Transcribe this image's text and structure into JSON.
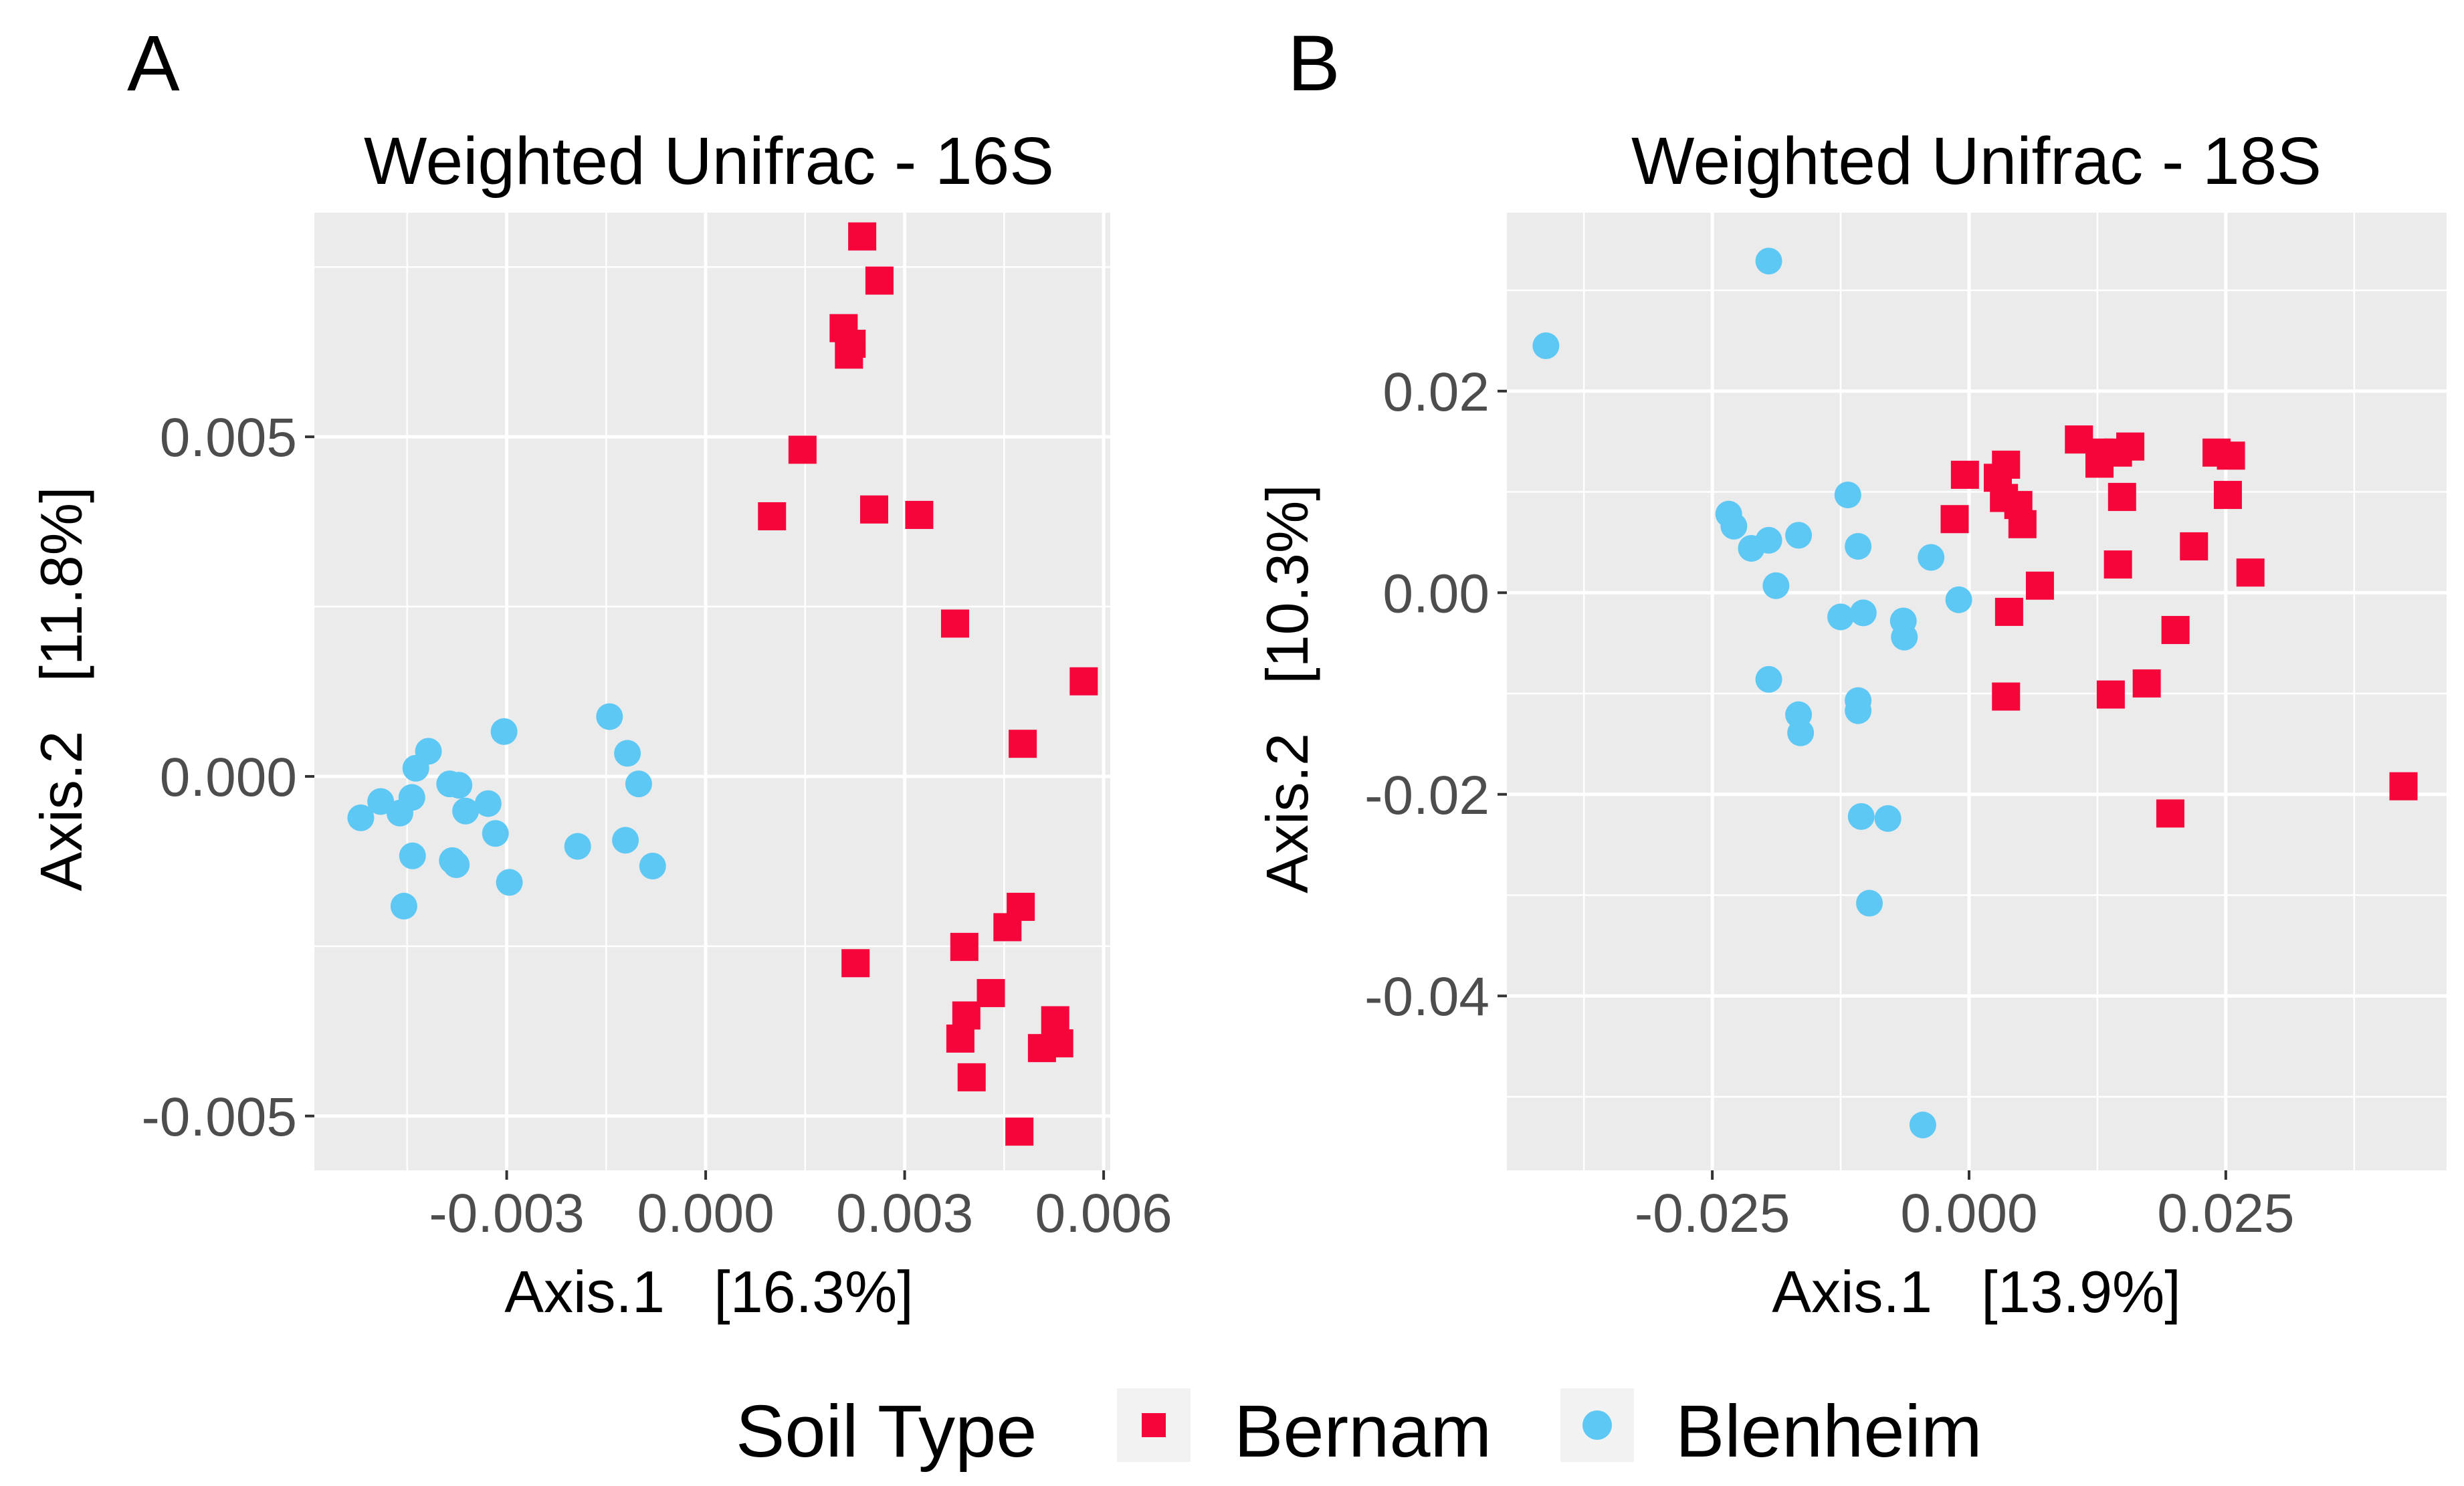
{
  "legend": {
    "title": "Soil Type",
    "items": [
      {
        "label": "Bernam",
        "shape": "square",
        "color": "#f5053a"
      },
      {
        "label": "Blenheim",
        "shape": "circle",
        "color": "#5ec8f5"
      }
    ]
  },
  "colors": {
    "panel_bg": "#ebebeb",
    "grid": "#ffffff",
    "tick_text": "#4d4d4d",
    "Bernam": "#f5053a",
    "Blenheim": "#5ec8f5"
  },
  "chart_data": [
    {
      "type": "scatter",
      "panel_label": "A",
      "title": "Weighted Unifrac - 16S",
      "xlabel": "Axis.1   [16.3%]",
      "ylabel": "Axis.2   [11.8%]",
      "xlim": [
        -0.0059,
        0.0061
      ],
      "ylim": [
        -0.0058,
        0.0083
      ],
      "xticks": [
        -0.003,
        0.0,
        0.003,
        0.006
      ],
      "xtick_labels": [
        "-0.003",
        "0.000",
        "0.003",
        "0.006"
      ],
      "yticks": [
        -0.005,
        0.0,
        0.005
      ],
      "ytick_labels": [
        "-0.005",
        "0.000",
        "0.005"
      ],
      "series": [
        {
          "name": "Bernam",
          "points": [
            [
              0.00236,
              0.00795
            ],
            [
              0.00262,
              0.0073
            ],
            [
              0.00208,
              0.0066
            ],
            [
              0.0022,
              0.00637
            ],
            [
              0.00216,
              0.00621
            ],
            [
              0.00146,
              0.00481
            ],
            [
              0.001,
              0.00383
            ],
            [
              0.00254,
              0.00393
            ],
            [
              0.00322,
              0.00385
            ],
            [
              0.00376,
              0.00225
            ],
            [
              0.0057,
              0.0014
            ],
            [
              0.00478,
              0.00048
            ],
            [
              0.00226,
              -0.00275
            ],
            [
              0.00475,
              -0.00192
            ],
            [
              0.00455,
              -0.00222
            ],
            [
              0.0039,
              -0.00251
            ],
            [
              0.0043,
              -0.00319
            ],
            [
              0.00393,
              -0.00352
            ],
            [
              0.00384,
              -0.00386
            ],
            [
              0.00527,
              -0.00359
            ],
            [
              0.00507,
              -0.004
            ],
            [
              0.00533,
              -0.00393
            ],
            [
              0.00401,
              -0.00443
            ],
            [
              0.00473,
              -0.00523
            ]
          ]
        },
        {
          "name": "Blenheim",
          "points": [
            [
              -0.0052,
              -0.00061
            ],
            [
              -0.0049,
              -0.00037
            ],
            [
              -0.00461,
              -0.00054
            ],
            [
              -0.00437,
              0.00012
            ],
            [
              -0.00418,
              0.00037
            ],
            [
              -0.00386,
              -0.00011
            ],
            [
              -0.00372,
              -0.00013
            ],
            [
              -0.00362,
              -0.00051
            ],
            [
              -0.00443,
              -0.00031
            ],
            [
              -0.00442,
              -0.00117
            ],
            [
              -0.00382,
              -0.00124
            ],
            [
              -0.00376,
              -0.0013
            ],
            [
              -0.00328,
              -0.0004
            ],
            [
              -0.00317,
              -0.00084
            ],
            [
              -0.00296,
              -0.00156
            ],
            [
              -0.00455,
              -0.00191
            ],
            [
              -0.00304,
              0.00066
            ],
            [
              -0.00193,
              -0.00103
            ],
            [
              -0.00145,
              0.00088
            ],
            [
              -0.00118,
              0.00034
            ],
            [
              -0.00101,
              -0.00011
            ],
            [
              -0.00121,
              -0.00094
            ],
            [
              -0.0008,
              -0.00132
            ]
          ]
        }
      ]
    },
    {
      "type": "scatter",
      "panel_label": "B",
      "title": "Weighted Unifrac - 18S",
      "xlabel": "Axis.1   [13.9%]",
      "ylabel": "Axis.2   [10.3%]",
      "xlim": [
        -0.045,
        0.0465
      ],
      "ylim": [
        -0.0573,
        0.0377
      ],
      "xticks": [
        -0.025,
        0.0,
        0.025
      ],
      "xtick_labels": [
        "-0.025",
        "0.000",
        "0.025"
      ],
      "yticks": [
        -0.04,
        -0.02,
        0.0,
        0.02
      ],
      "ytick_labels": [
        "-0.04",
        "-0.02",
        "0.00",
        "0.02"
      ],
      "series": [
        {
          "name": "Bernam",
          "points": [
            [
              0.0107,
              0.0152
            ],
            [
              0.0127,
              0.0139
            ],
            [
              0.0127,
              0.0128
            ],
            [
              0.0145,
              0.0139
            ],
            [
              0.0157,
              0.0145
            ],
            [
              0.0241,
              0.0139
            ],
            [
              0.0255,
              0.0136
            ],
            [
              0.0036,
              0.0127
            ],
            [
              -0.0004,
              0.0117
            ],
            [
              0.0028,
              0.0114
            ],
            [
              0.0034,
              0.0094
            ],
            [
              0.0048,
              0.0087
            ],
            [
              0.0052,
              0.0068
            ],
            [
              -0.0014,
              0.0073
            ],
            [
              0.0149,
              0.0095
            ],
            [
              0.0252,
              0.0097
            ],
            [
              0.0219,
              0.0046
            ],
            [
              0.0145,
              0.0028
            ],
            [
              0.0274,
              0.002
            ],
            [
              0.0069,
              0.0007
            ],
            [
              0.0039,
              -0.0019
            ],
            [
              0.0201,
              -0.0037
            ],
            [
              0.0036,
              -0.0103
            ],
            [
              0.0138,
              -0.0101
            ],
            [
              0.0173,
              -0.009
            ],
            [
              0.0196,
              -0.0219
            ],
            [
              0.0423,
              -0.0192
            ]
          ]
        },
        {
          "name": "Blenheim",
          "points": [
            [
              -0.0195,
              0.0329
            ],
            [
              -0.0412,
              0.0245
            ],
            [
              -0.0234,
              0.0078
            ],
            [
              -0.0229,
              0.0066
            ],
            [
              -0.0212,
              0.0044
            ],
            [
              -0.0195,
              0.0052
            ],
            [
              -0.0166,
              0.0057
            ],
            [
              -0.0118,
              0.0097
            ],
            [
              -0.0108,
              0.0046
            ],
            [
              -0.0037,
              0.0035
            ],
            [
              -0.0188,
              0.0007
            ],
            [
              -0.0125,
              -0.0024
            ],
            [
              -0.0103,
              -0.002
            ],
            [
              -0.0064,
              -0.0028
            ],
            [
              -0.0063,
              -0.0044
            ],
            [
              -0.001,
              -0.0007
            ],
            [
              -0.0195,
              -0.0086
            ],
            [
              -0.0166,
              -0.0121
            ],
            [
              -0.0164,
              -0.0139
            ],
            [
              -0.0108,
              -0.0107
            ],
            [
              -0.0108,
              -0.0117
            ],
            [
              -0.0105,
              -0.0222
            ],
            [
              -0.0079,
              -0.0224
            ],
            [
              -0.0097,
              -0.0308
            ],
            [
              -0.0045,
              -0.0528
            ]
          ]
        }
      ]
    }
  ]
}
